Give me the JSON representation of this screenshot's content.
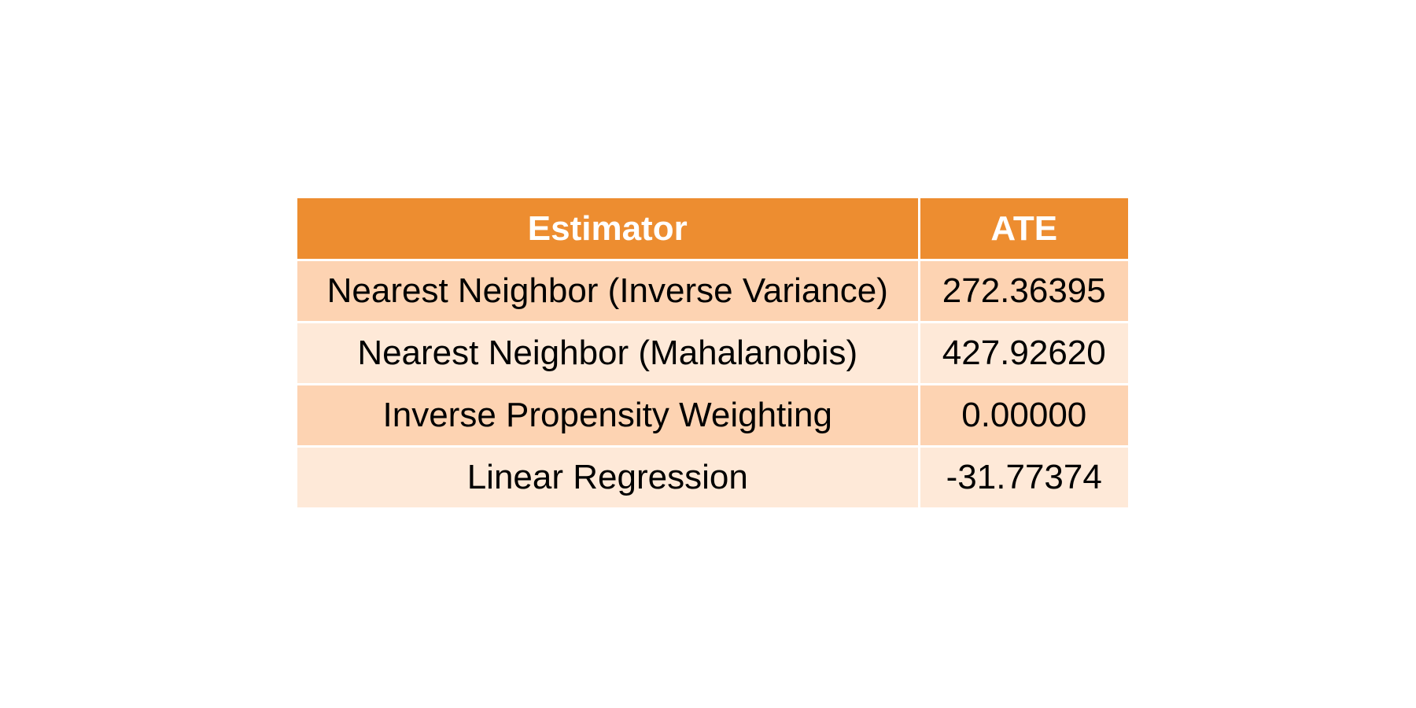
{
  "chart_data": {
    "type": "table",
    "columns": [
      "Estimator",
      "ATE"
    ],
    "rows": [
      {
        "estimator": "Nearest Neighbor (Inverse Variance)",
        "ate": "272.36395"
      },
      {
        "estimator": "Nearest Neighbor (Mahalanobis)",
        "ate": "427.92620"
      },
      {
        "estimator": "Inverse Propensity Weighting",
        "ate": "0.00000"
      },
      {
        "estimator": "Linear Regression",
        "ate": "-31.77374"
      }
    ]
  },
  "colors": {
    "header_bg": "#ED8D30",
    "row_odd_bg": "#FDD3B2",
    "row_even_bg": "#FEE9D8",
    "border": "#FFFFFF"
  }
}
